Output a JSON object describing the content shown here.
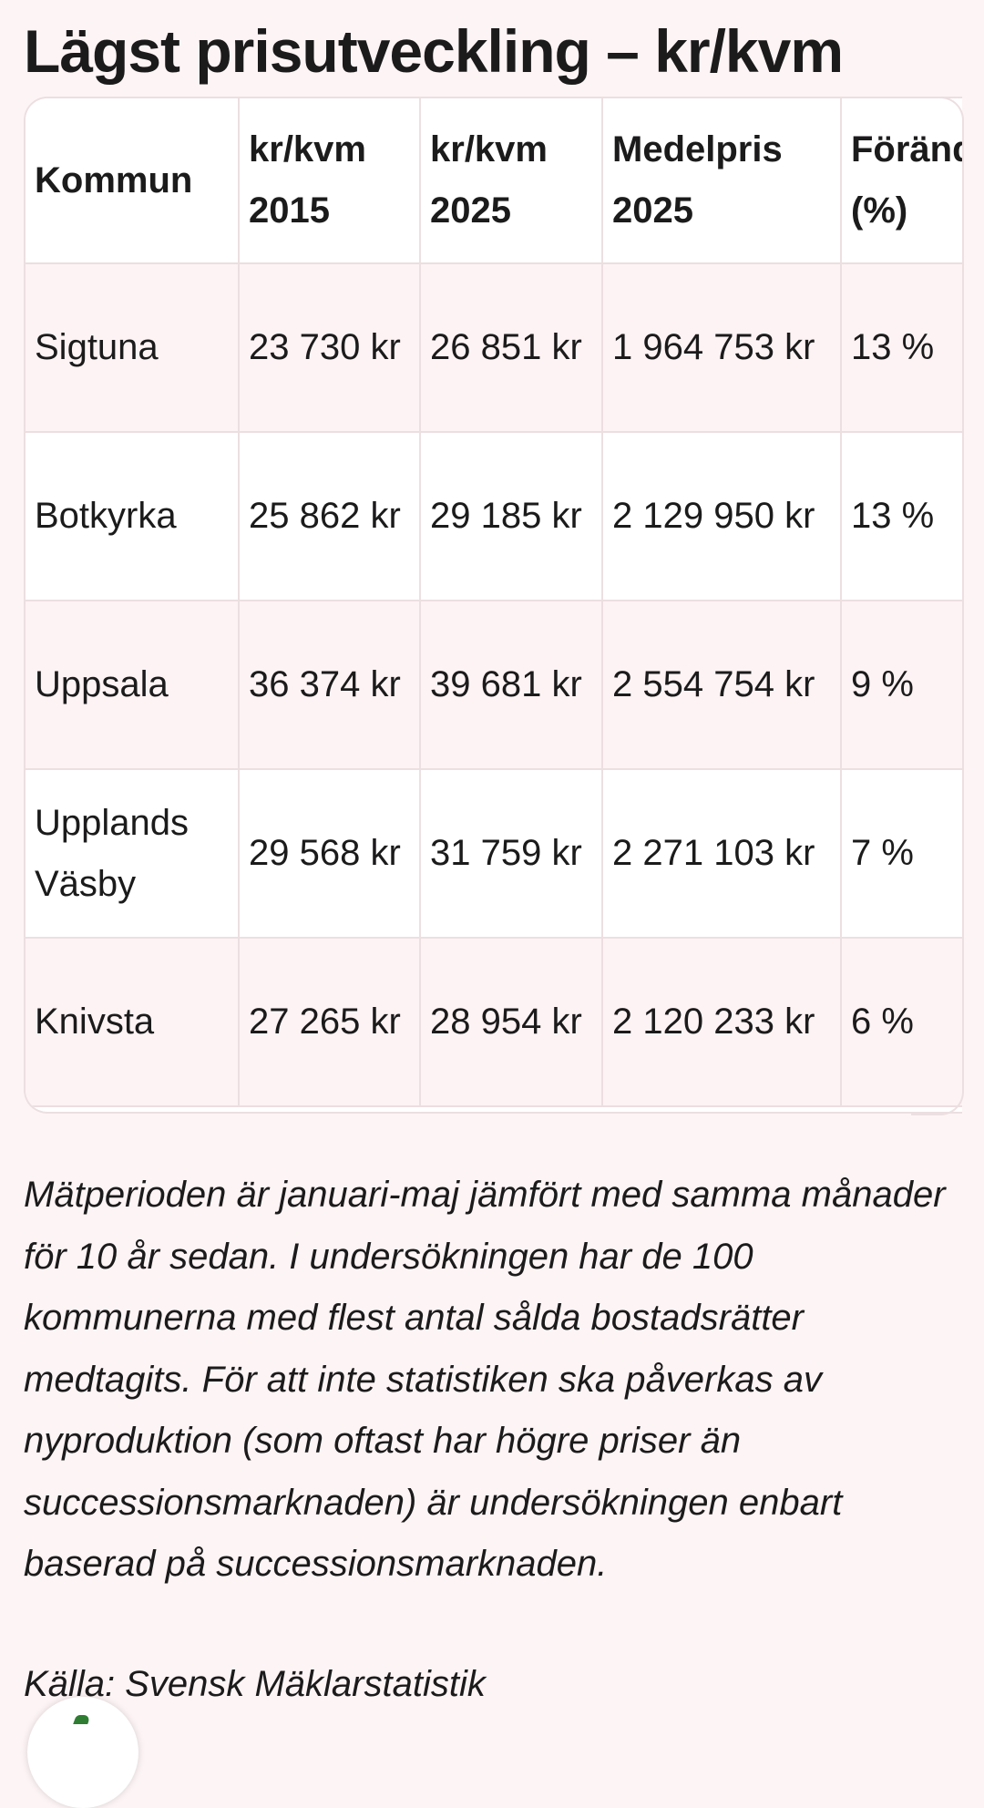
{
  "title": "Lägst prisutveckling – kr/kvm",
  "table": {
    "headers": [
      [
        "Kommun"
      ],
      [
        "kr/kvm",
        "2015"
      ],
      [
        "kr/kvm",
        "2025"
      ],
      [
        "Medelpris",
        "2025"
      ],
      [
        "Förändring",
        "(%)"
      ]
    ],
    "rows": [
      {
        "kommun": "Sigtuna",
        "kvm2015": "23 730 kr",
        "kvm2025": "26 851 kr",
        "medelpris": "1 964 753 kr",
        "change": "13 %"
      },
      {
        "kommun": "Botkyrka",
        "kvm2015": "25 862 kr",
        "kvm2025": "29 185 kr",
        "medelpris": "2 129 950 kr",
        "change": "13 %"
      },
      {
        "kommun": "Uppsala",
        "kvm2015": "36 374 kr",
        "kvm2025": "39 681 kr",
        "medelpris": "2 554 754 kr",
        "change": "9 %"
      },
      {
        "kommun": "Upplands Väsby",
        "kvm2015": "29 568 kr",
        "kvm2025": "31 759 kr",
        "medelpris": "2 271 103 kr",
        "change": "7 %"
      },
      {
        "kommun": "Knivsta",
        "kvm2015": "27 265 kr",
        "kvm2025": "28 954 kr",
        "medelpris": "2 120 233 kr",
        "change": "6 %"
      }
    ]
  },
  "note": "Mätperioden är januari-maj jämfört med samma månader för 10 år sedan. I undersökningen har de 100 kommunerna med flest antal sålda bostadsrätter medtagits. För att inte statistiken ska påverkas av nyproduktion (som oftast har högre priser än successionsmarknaden) är undersökningen enbart baserad på successionsmarknaden.",
  "source": "Källa: Svensk Mäklarstatistik",
  "colors": {
    "background": "#fdf4f5",
    "row_alt": "#fdf3f4",
    "border": "#ecdfe1",
    "fab_icon": "#2e7d32"
  }
}
